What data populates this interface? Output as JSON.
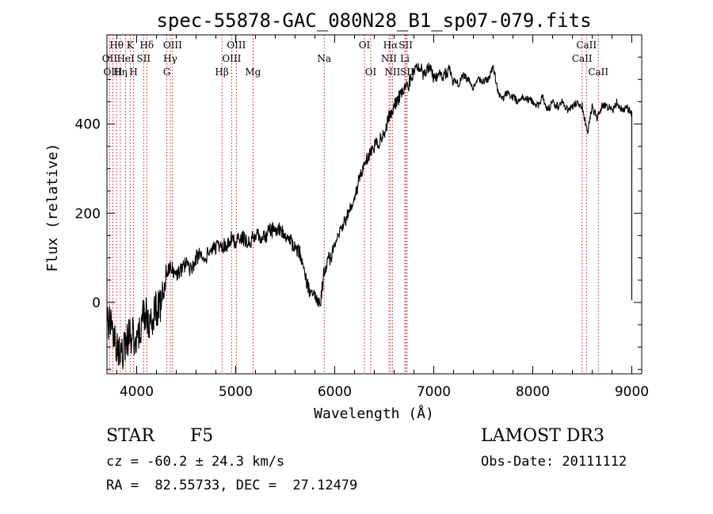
{
  "chart_data": {
    "type": "line",
    "title": "spec-55878-GAC_080N28_B1_sp07-079.fits",
    "xlabel": "Wavelength (Å)",
    "ylabel": "Flux (relative)",
    "xlim": [
      3700,
      9100
    ],
    "ylim": [
      -160,
      600
    ],
    "xticks": [
      4000,
      5000,
      6000,
      7000,
      8000,
      9000
    ],
    "xtick_labels": [
      "4000",
      "5000",
      "6000",
      "7000",
      "8000",
      "9000"
    ],
    "yticks": [
      0,
      200,
      400
    ],
    "ytick_labels": [
      "0",
      "200",
      "400"
    ],
    "series": [
      {
        "name": "flux",
        "x": [
          3700,
          3750,
          3800,
          3850,
          3900,
          3950,
          4000,
          4050,
          4100,
          4150,
          4200,
          4250,
          4300,
          4350,
          4400,
          4450,
          4500,
          4550,
          4600,
          4650,
          4700,
          4750,
          4800,
          4850,
          4900,
          4950,
          5000,
          5050,
          5100,
          5150,
          5200,
          5250,
          5300,
          5350,
          5400,
          5450,
          5500,
          5550,
          5600,
          5650,
          5700,
          5750,
          5800,
          5850,
          5900,
          5950,
          6000,
          6050,
          6100,
          6150,
          6200,
          6250,
          6300,
          6350,
          6400,
          6450,
          6500,
          6550,
          6600,
          6650,
          6700,
          6750,
          6800,
          6850,
          6900,
          6950,
          7000,
          7050,
          7100,
          7150,
          7200,
          7250,
          7300,
          7350,
          7400,
          7450,
          7500,
          7550,
          7600,
          7650,
          7700,
          7750,
          7800,
          7850,
          7900,
          7950,
          8000,
          8050,
          8100,
          8150,
          8200,
          8250,
          8300,
          8350,
          8400,
          8450,
          8500,
          8550,
          8600,
          8650,
          8700,
          8750,
          8800,
          8850,
          8900,
          8950,
          9000
        ],
        "values": [
          -40,
          -60,
          -90,
          -120,
          -80,
          -70,
          -90,
          -40,
          -30,
          -60,
          -10,
          0,
          60,
          80,
          60,
          70,
          90,
          70,
          100,
          110,
          100,
          120,
          125,
          130,
          125,
          145,
          135,
          150,
          135,
          140,
          150,
          145,
          150,
          160,
          165,
          160,
          150,
          140,
          120,
          110,
          60,
          20,
          10,
          -10,
          80,
          100,
          120,
          160,
          180,
          210,
          230,
          280,
          310,
          330,
          350,
          360,
          380,
          420,
          440,
          460,
          480,
          490,
          520,
          530,
          510,
          530,
          500,
          520,
          510,
          520,
          500,
          490,
          510,
          500,
          480,
          500,
          495,
          500,
          530,
          470,
          460,
          470,
          460,
          450,
          460,
          455,
          450,
          440,
          460,
          430,
          450,
          440,
          450,
          430,
          440,
          450,
          440,
          380,
          440,
          410,
          440,
          440,
          430,
          450,
          430,
          440,
          420
        ]
      }
    ],
    "line_markers": [
      {
        "label": "Hθ",
        "wavelength": 3797,
        "row": 1
      },
      {
        "label": "OII",
        "wavelength": 3727,
        "row": 2
      },
      {
        "label": "OIII",
        "wavelength": 3760,
        "row": 3
      },
      {
        "label": "K",
        "wavelength": 3934,
        "row": 1
      },
      {
        "label": "Hη",
        "wavelength": 3835,
        "row": 3
      },
      {
        "label": "HeI",
        "wavelength": 3889,
        "row": 2
      },
      {
        "label": "H",
        "wavelength": 3969,
        "row": 3
      },
      {
        "label": "SII",
        "wavelength": 4070,
        "row": 2
      },
      {
        "label": "Hδ",
        "wavelength": 4102,
        "row": 1
      },
      {
        "label": "OIII",
        "wavelength": 4363,
        "row": 1
      },
      {
        "label": "Hγ",
        "wavelength": 4340,
        "row": 2
      },
      {
        "label": "G",
        "wavelength": 4304,
        "row": 3
      },
      {
        "label": "Hβ",
        "wavelength": 4861,
        "row": 3
      },
      {
        "label": "OIII",
        "wavelength": 4959,
        "row": 2
      },
      {
        "label": "OIII",
        "wavelength": 5007,
        "row": 1
      },
      {
        "label": "Mg",
        "wavelength": 5175,
        "row": 3
      },
      {
        "label": "Na",
        "wavelength": 5894,
        "row": 2
      },
      {
        "label": "OI",
        "wavelength": 6300,
        "row": 1
      },
      {
        "label": "OI",
        "wavelength": 6364,
        "row": 3
      },
      {
        "label": "Hα",
        "wavelength": 6563,
        "row": 1
      },
      {
        "label": "NII",
        "wavelength": 6548,
        "row": 2
      },
      {
        "label": "NII",
        "wavelength": 6583,
        "row": 3
      },
      {
        "label": "SII",
        "wavelength": 6717,
        "row": 1
      },
      {
        "label": "Li",
        "wavelength": 6708,
        "row": 2
      },
      {
        "label": "SII",
        "wavelength": 6731,
        "row": 3
      },
      {
        "label": "CaII",
        "wavelength": 8498,
        "row": 2
      },
      {
        "label": "CaII",
        "wavelength": 8542,
        "row": 1
      },
      {
        "label": "CaII",
        "wavelength": 8662,
        "row": 3
      }
    ]
  },
  "info": {
    "object_class": "STAR",
    "subclass": "F5",
    "survey": "LAMOST DR3",
    "redshift": "cz = -60.2 ± 24.3 km/s",
    "obs_date": "Obs-Date: 20111112",
    "coordinates": "RA =  82.55733, DEC =  27.12479"
  },
  "colors": {
    "spectrum": "#000000",
    "marker_line": "#cc0000",
    "background": "#ffffff"
  }
}
